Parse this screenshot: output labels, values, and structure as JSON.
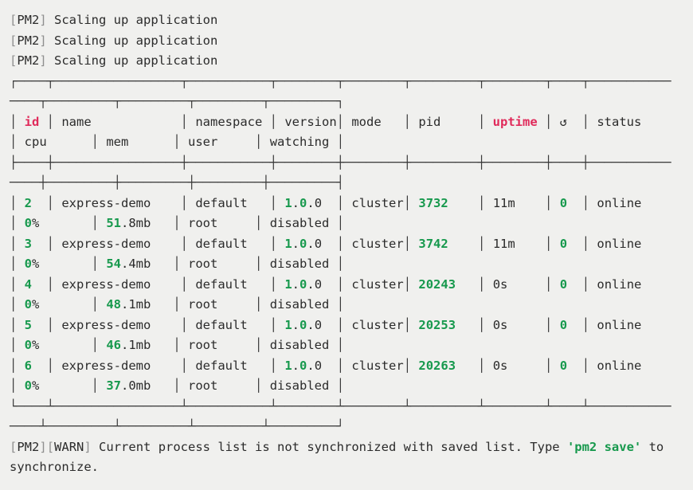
{
  "colors": {
    "background": "#f0f0ee",
    "foreground": "#2b2b2b",
    "accent_green": "#17994d",
    "accent_red": "#e02b5b",
    "bracket_gray": "#8f8f8f"
  },
  "log_lines": [
    {
      "tag": "PM2",
      "message": "Scaling up application"
    },
    {
      "tag": "PM2",
      "message": "Scaling up application"
    },
    {
      "tag": "PM2",
      "message": "Scaling up application"
    }
  ],
  "table": {
    "headers": {
      "id": "id",
      "name": "name",
      "namespace": "namespace",
      "version": "version",
      "mode": "mode",
      "pid": "pid",
      "uptime": "uptime",
      "restart_icon": "↺",
      "status": "status",
      "cpu": "cpu",
      "mem": "mem",
      "user": "user",
      "watching": "watching"
    },
    "rows": [
      {
        "id": "2",
        "name": "express-demo",
        "namespace": "default",
        "version": "1.0.0",
        "mode": "cluster",
        "pid": "3732",
        "uptime": "11m",
        "restarts": "0",
        "status": "online",
        "cpu": "0%",
        "mem": "51.8mb",
        "user": "root",
        "watching": "disabled"
      },
      {
        "id": "3",
        "name": "express-demo",
        "namespace": "default",
        "version": "1.0.0",
        "mode": "cluster",
        "pid": "3742",
        "uptime": "11m",
        "restarts": "0",
        "status": "online",
        "cpu": "0%",
        "mem": "54.4mb",
        "user": "root",
        "watching": "disabled"
      },
      {
        "id": "4",
        "name": "express-demo",
        "namespace": "default",
        "version": "1.0.0",
        "mode": "cluster",
        "pid": "20243",
        "uptime": "0s",
        "restarts": "0",
        "status": "online",
        "cpu": "0%",
        "mem": "48.1mb",
        "user": "root",
        "watching": "disabled"
      },
      {
        "id": "5",
        "name": "express-demo",
        "namespace": "default",
        "version": "1.0.0",
        "mode": "cluster",
        "pid": "20253",
        "uptime": "0s",
        "restarts": "0",
        "status": "online",
        "cpu": "0%",
        "mem": "46.1mb",
        "user": "root",
        "watching": "disabled"
      },
      {
        "id": "6",
        "name": "express-demo",
        "namespace": "default",
        "version": "1.0.0",
        "mode": "cluster",
        "pid": "20263",
        "uptime": "0s",
        "restarts": "0",
        "status": "online",
        "cpu": "0%",
        "mem": "37.0mb",
        "user": "root",
        "watching": "disabled"
      }
    ]
  },
  "warning": {
    "tags": [
      "PM2",
      "WARN"
    ],
    "text_before": "Current process list is not synchronized with saved list. Type ",
    "command": "'pm2 save'",
    "text_after": " to synchronize."
  }
}
